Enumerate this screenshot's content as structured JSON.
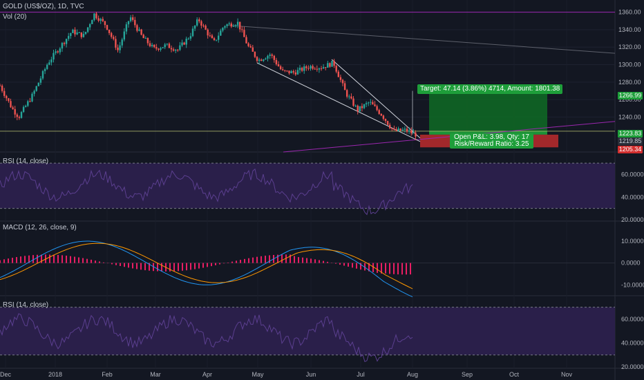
{
  "header": {
    "symbol_line": "GOLD (US$/OZ), 1D, TVC",
    "volume_line": "Vol (20)"
  },
  "panes": {
    "rsi_top": {
      "label": "RSI (14, close)",
      "ticks": [
        "60.0000",
        "40.0000",
        "20.0000"
      ]
    },
    "macd": {
      "label": "MACD (12, 26, close, 9)",
      "ticks": [
        "10.0000",
        "0.0000",
        "-10.0000"
      ]
    },
    "rsi_bottom": {
      "label": "RSI (14, close)",
      "ticks": [
        "60.0000",
        "40.0000",
        "20.0000"
      ]
    }
  },
  "price_axis": {
    "ticks": [
      "1360.00",
      "1340.00",
      "1320.00",
      "1300.00",
      "1280.00",
      "1260.00",
      "1240.00"
    ]
  },
  "price_tags": {
    "target": "1266.99",
    "entry_high": "1223.83",
    "current": "1219.85",
    "stop": "1205.34"
  },
  "position": {
    "target_text": "Target: 47.14 (3.86%) 4714, Amount: 1801.38",
    "pnl_line1": "Open P&L: 3.98, Qty: 17",
    "pnl_line2": "Risk/Reward Ratio: 3.25"
  },
  "time_axis": [
    "Dec",
    "2018",
    "Feb",
    "Mar",
    "Apr",
    "May",
    "Jun",
    "Jul",
    "Aug",
    "Sep",
    "Oct",
    "Nov"
  ],
  "colors": {
    "background": "#131722",
    "up": "#26a69a",
    "down": "#ef5350",
    "rsi_fill": "#2a1f4a",
    "rsi_line": "#5b3f8f",
    "macd_line": "#2196f3",
    "signal_line": "#ff9800",
    "hist_color": "#e91e63",
    "target_zone": "#0f6b24",
    "stop_zone": "#d32f2f",
    "trend_line": "#9c27b0"
  },
  "chart_data": {
    "type": "candlestick",
    "title": "GOLD (US$/OZ), 1D, TVC",
    "x_range": [
      "2017-12-01",
      "2018-11-15"
    ],
    "y_range": [
      1200,
      1370
    ],
    "price_points": [
      [
        "2017-12-01",
        1276
      ],
      [
        "2017-12-08",
        1250
      ],
      [
        "2017-12-12",
        1240
      ],
      [
        "2017-12-20",
        1265
      ],
      [
        "2017-12-29",
        1302
      ],
      [
        "2018-01-05",
        1320
      ],
      [
        "2018-01-12",
        1338
      ],
      [
        "2018-01-19",
        1333
      ],
      [
        "2018-01-25",
        1358
      ],
      [
        "2018-02-01",
        1345
      ],
      [
        "2018-02-08",
        1316
      ],
      [
        "2018-02-15",
        1355
      ],
      [
        "2018-02-22",
        1332
      ],
      [
        "2018-03-01",
        1318
      ],
      [
        "2018-03-08",
        1322
      ],
      [
        "2018-03-15",
        1317
      ],
      [
        "2018-03-22",
        1333
      ],
      [
        "2018-03-27",
        1352
      ],
      [
        "2018-04-05",
        1325
      ],
      [
        "2018-04-11",
        1345
      ],
      [
        "2018-04-19",
        1348
      ],
      [
        "2018-04-25",
        1321
      ],
      [
        "2018-05-01",
        1305
      ],
      [
        "2018-05-08",
        1312
      ],
      [
        "2018-05-15",
        1292
      ],
      [
        "2018-05-22",
        1291
      ],
      [
        "2018-05-31",
        1298
      ],
      [
        "2018-06-07",
        1297
      ],
      [
        "2018-06-14",
        1302
      ],
      [
        "2018-06-21",
        1268
      ],
      [
        "2018-06-28",
        1248
      ],
      [
        "2018-07-05",
        1257
      ],
      [
        "2018-07-12",
        1243
      ],
      [
        "2018-07-19",
        1224
      ],
      [
        "2018-07-26",
        1225
      ],
      [
        "2018-08-01",
        1220
      ]
    ]
  }
}
